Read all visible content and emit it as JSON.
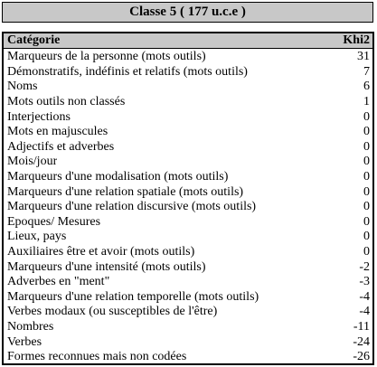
{
  "title": "Classe 5 ( 177 u.c.e )",
  "header": {
    "category_label": "Catégorie",
    "value_label": "Khi2"
  },
  "rows": [
    {
      "label": "Marqueurs de la personne (mots outils)",
      "value": "31"
    },
    {
      "label": "Démonstratifs, indéfinis et relatifs (mots outils)",
      "value": "7"
    },
    {
      "label": "Noms",
      "value": "6"
    },
    {
      "label": "Mots outils non classés",
      "value": "1"
    },
    {
      "label": "Interjections",
      "value": "0"
    },
    {
      "label": "Mots en majuscules",
      "value": "0"
    },
    {
      "label": "Adjectifs et adverbes",
      "value": "0"
    },
    {
      "label": "Mois/jour",
      "value": "0"
    },
    {
      "label": "Marqueurs d'une modalisation (mots outils)",
      "value": "0"
    },
    {
      "label": "Marqueurs d'une relation spatiale (mots outils)",
      "value": "0"
    },
    {
      "label": "Marqueurs d'une relation discursive (mots outils)",
      "value": "0"
    },
    {
      "label": "Epoques/ Mesures",
      "value": "0"
    },
    {
      "label": "Lieux, pays",
      "value": "0"
    },
    {
      "label": "Auxiliaires être et avoir (mots outils)",
      "value": "0"
    },
    {
      "label": "Marqueurs d'une intensité (mots outils)",
      "value": "-2"
    },
    {
      "label": "Adverbes en \"ment\"",
      "value": "-3"
    },
    {
      "label": "Marqueurs d'une relation temporelle (mots outils)",
      "value": "-4"
    },
    {
      "label": "Verbes modaux (ou susceptibles de l'être)",
      "value": "-4"
    },
    {
      "label": "Nombres",
      "value": "-11"
    },
    {
      "label": "Verbes",
      "value": "-24"
    },
    {
      "label": "Formes reconnues mais non codées",
      "value": "-26"
    }
  ]
}
